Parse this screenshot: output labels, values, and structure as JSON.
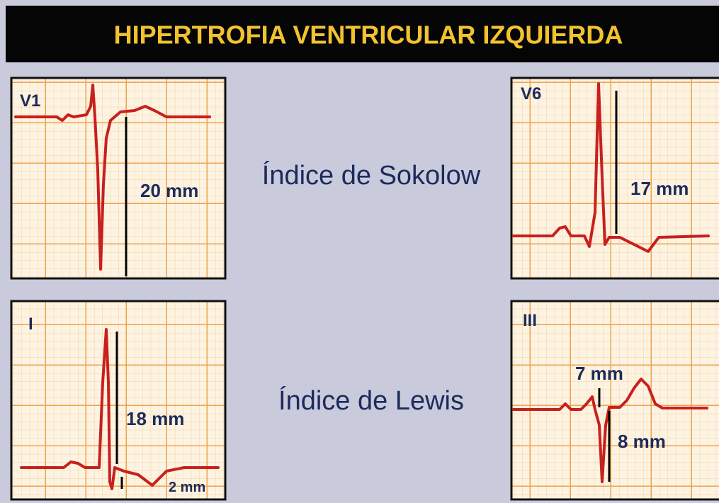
{
  "header": {
    "title": "HIPERTROFIA VENTRICULAR IZQUIERDA"
  },
  "indices": [
    {
      "label": "Índice de Sokolow"
    },
    {
      "label": "Índice de Lewis"
    }
  ],
  "panels": [
    {
      "lead": "V1",
      "measures": [
        "20 mm"
      ]
    },
    {
      "lead": "V6",
      "measures": [
        "17 mm"
      ]
    },
    {
      "lead": "I",
      "measures": [
        "18 mm",
        "2 mm"
      ]
    },
    {
      "lead": "III",
      "measures": [
        "7 mm",
        "8 mm"
      ]
    }
  ]
}
